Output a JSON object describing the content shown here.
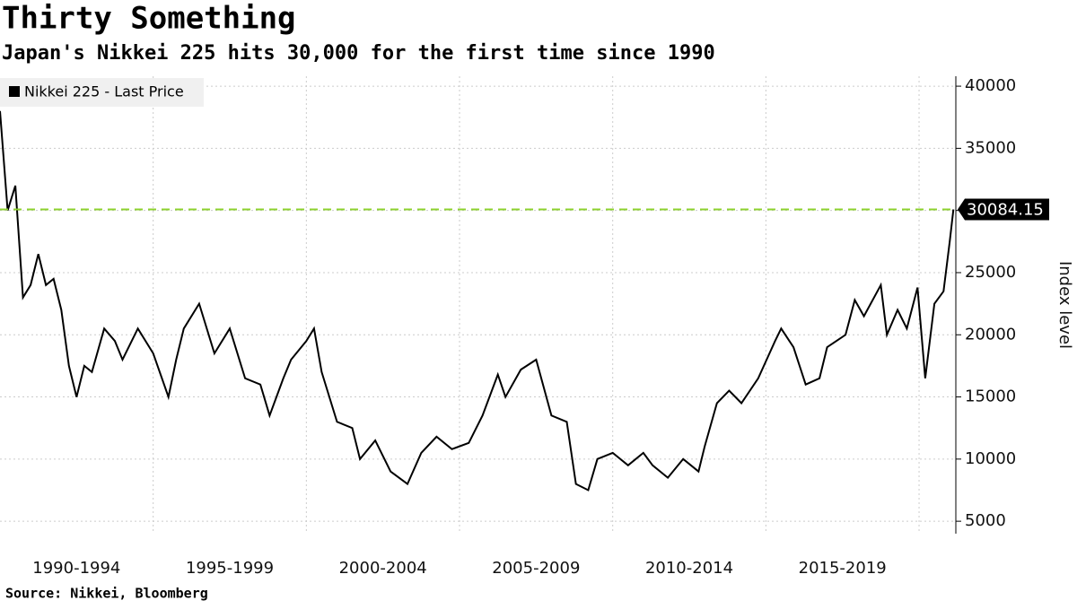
{
  "chart_data": {
    "type": "line",
    "title": "Thirty Something",
    "subtitle": "Japan's Nikkei 225 hits 30,000 for the first time since 1990",
    "source": "Source: Nikkei, Bloomberg",
    "y_axis_label": "Index level",
    "x": [
      1990.0,
      1990.25,
      1990.5,
      1990.75,
      1991.0,
      1991.25,
      1991.5,
      1991.75,
      1992.0,
      1992.25,
      1992.5,
      1992.75,
      1993.0,
      1993.4,
      1993.75,
      1994.0,
      1994.5,
      1995.0,
      1995.5,
      1995.75,
      1996.0,
      1996.5,
      1997.0,
      1997.5,
      1998.0,
      1998.5,
      1998.8,
      1999.25,
      1999.5,
      2000.0,
      2000.25,
      2000.5,
      2001.0,
      2001.5,
      2001.75,
      2002.25,
      2002.75,
      2003.3,
      2003.75,
      2004.25,
      2004.75,
      2005.3,
      2005.75,
      2006.25,
      2006.5,
      2007.0,
      2007.5,
      2008.0,
      2008.5,
      2008.8,
      2009.2,
      2009.5,
      2010.0,
      2010.5,
      2011.0,
      2011.3,
      2011.8,
      2012.3,
      2012.8,
      2013.0,
      2013.4,
      2013.8,
      2014.2,
      2014.75,
      2015.3,
      2015.5,
      2015.9,
      2016.3,
      2016.75,
      2017.0,
      2017.6,
      2017.9,
      2018.2,
      2018.75,
      2018.95,
      2019.3,
      2019.6,
      2019.95,
      2020.2,
      2020.5,
      2020.8,
      2021.0,
      2021.12
    ],
    "series": [
      {
        "name": "Nikkei 225 - Last Price",
        "color": "#000000",
        "values": [
          38000,
          30000,
          32000,
          23000,
          24000,
          26500,
          24000,
          24500,
          22000,
          17500,
          15000,
          17500,
          17000,
          20500,
          19500,
          18000,
          20500,
          18500,
          15000,
          18000,
          20500,
          22500,
          18500,
          20500,
          16500,
          16000,
          13500,
          16500,
          18000,
          19500,
          20500,
          17000,
          13000,
          12500,
          10000,
          11500,
          9000,
          8000,
          10500,
          11800,
          10800,
          11300,
          13500,
          16800,
          15000,
          17200,
          18000,
          13500,
          13000,
          8000,
          7500,
          10000,
          10500,
          9500,
          10500,
          9500,
          8500,
          10000,
          9000,
          11000,
          14500,
          15500,
          14500,
          16500,
          19500,
          20500,
          19000,
          16000,
          16500,
          19000,
          20000,
          22800,
          21500,
          24000,
          20000,
          22000,
          20500,
          23800,
          16500,
          22500,
          23500,
          27500,
          30084.15
        ]
      }
    ],
    "reference_color": "#8cd12e",
    "xlim": [
      1990,
      2021.2
    ],
    "xticks": [
      {
        "value": 1992.5,
        "label": "1990-1994"
      },
      {
        "value": 1997.5,
        "label": "1995-1999"
      },
      {
        "value": 2002.5,
        "label": "2000-2004"
      },
      {
        "value": 2007.5,
        "label": "2005-2009"
      },
      {
        "value": 2012.5,
        "label": "2010-2014"
      },
      {
        "value": 2017.5,
        "label": "2015-2019"
      }
    ],
    "x_grid": [
      1995,
      2000,
      2005,
      2010,
      2015,
      2020
    ],
    "ylim": [
      4000,
      40800
    ],
    "yticks": [
      5000,
      10000,
      15000,
      20000,
      25000,
      30000,
      35000,
      40000
    ],
    "grid": true
  }
}
